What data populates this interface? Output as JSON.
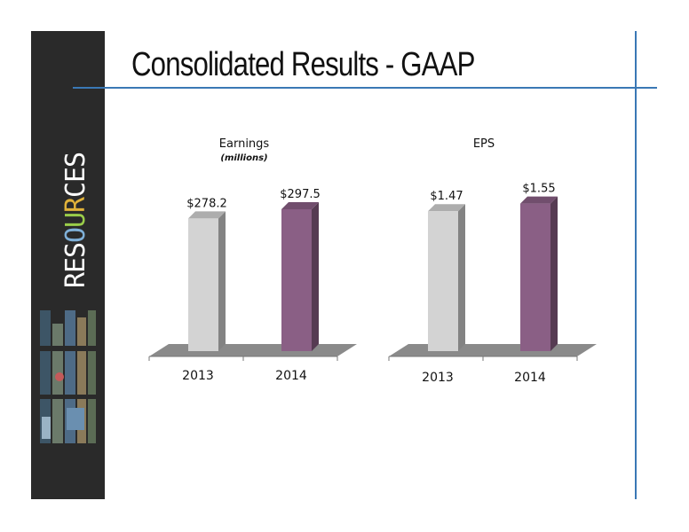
{
  "slide": {
    "title": "Consolidated Results - GAAP",
    "brand": {
      "word": "RESOURCES",
      "letter_colors": [
        "#ffffff",
        "#ffffff",
        "#ffffff",
        "#7fb0d8",
        "#9acd4a",
        "#e0b23a",
        "#ffffff",
        "#ffffff",
        "#ffffff"
      ]
    }
  },
  "colors": {
    "accent_line": "#3a78b5",
    "sidebar": "#2a2a2a",
    "bar_2013": "#d3d3d3",
    "bar_2014": "#8a5f85"
  },
  "chart_data": [
    {
      "type": "bar",
      "title": "Earnings",
      "subtitle": "(millions)",
      "categories": [
        "2013",
        "2014"
      ],
      "values": [
        278.2,
        297.5
      ],
      "data_labels": [
        "$278.2",
        "$297.5"
      ],
      "bar_colors": [
        "#d3d3d3",
        "#8a5f85"
      ],
      "style": "3d",
      "grid": false,
      "legend": "none"
    },
    {
      "type": "bar",
      "title": "EPS",
      "subtitle": "",
      "categories": [
        "2013",
        "2014"
      ],
      "values": [
        1.47,
        1.55
      ],
      "data_labels": [
        "$1.47",
        "$1.55"
      ],
      "bar_colors": [
        "#d3d3d3",
        "#8a5f85"
      ],
      "style": "3d",
      "grid": false,
      "legend": "none"
    }
  ]
}
